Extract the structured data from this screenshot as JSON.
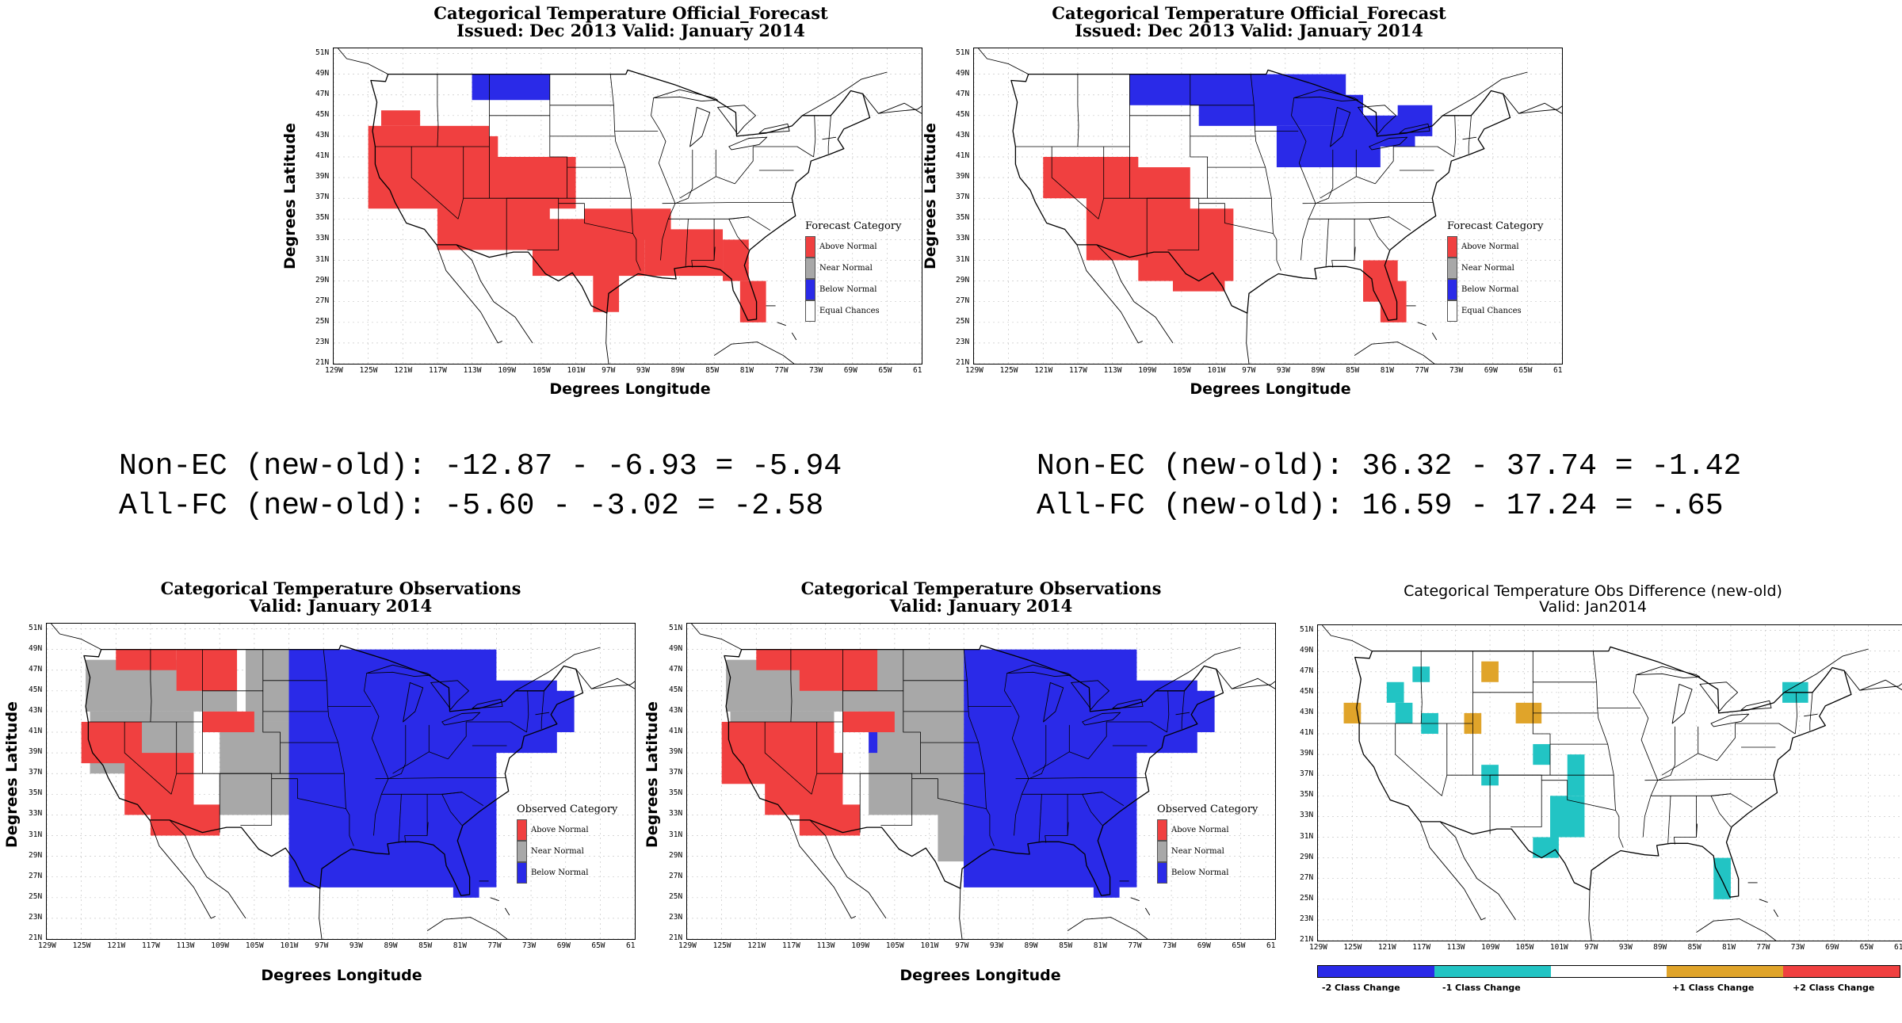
{
  "colors": {
    "above": "#f04040",
    "near": "#a8a8a8",
    "below": "#2a2ae8",
    "ec": "#ffffff",
    "minus2": "#2a2ae8",
    "minus1": "#22c4c4",
    "zero": "#ffffff",
    "plus1": "#e0a42a",
    "plus2": "#f04040"
  },
  "axes": {
    "x_label": "Degrees Longitude",
    "y_label": "Degrees Latitude",
    "x_ticks": [
      "129W",
      "125W",
      "121W",
      "117W",
      "113W",
      "109W",
      "105W",
      "101W",
      "97W",
      "93W",
      "89W",
      "85W",
      "81W",
      "77W",
      "73W",
      "69W",
      "65W",
      "61"
    ],
    "y_ticks": [
      "51N",
      "49N",
      "47N",
      "45N",
      "43N",
      "41N",
      "39N",
      "37N",
      "35N",
      "33N",
      "31N",
      "29N",
      "27N",
      "25N",
      "23N",
      "21N"
    ]
  },
  "panels": {
    "fc_old": {
      "title1": "Categorical Temperature Official_Forecast",
      "title2": "Issued: Dec 2013 Valid: January 2014",
      "legend_title": "Forecast Category",
      "legend": [
        "Above Normal",
        "Near Normal",
        "Below Normal",
        "Equal Chances"
      ]
    },
    "fc_new": {
      "title1": "Categorical Temperature Official_Forecast",
      "title2": "Issued: Dec 2013 Valid: January 2014",
      "legend_title": "Forecast Category",
      "legend": [
        "Above Normal",
        "Near Normal",
        "Below Normal",
        "Equal Chances"
      ]
    },
    "obs_old": {
      "title1": "Categorical Temperature Observations",
      "title2": "Valid: January 2014",
      "legend_title": "Observed Category",
      "legend": [
        "Above Normal",
        "Near Normal",
        "Below Normal"
      ]
    },
    "obs_new": {
      "title1": "Categorical Temperature Observations",
      "title2": "Valid: January 2014",
      "legend_title": "Observed Category",
      "legend": [
        "Above Normal",
        "Near Normal",
        "Below Normal"
      ]
    },
    "diff": {
      "title1": "Categorical Temperature Obs Difference (new-old)",
      "title2": "Valid: Jan2014",
      "colorbar": [
        "-2 Class Change",
        "-1 Class Change",
        "+1 Class Change",
        "+2 Class Change"
      ]
    }
  },
  "stats": {
    "left_line1": "Non-EC (new-old): -12.87 - -6.93 = -5.94",
    "left_line2": "All-FC (new-old): -5.60 - -3.02 = -2.58",
    "right_line1": "Non-EC (new-old): 36.32 - 37.74 = -1.42",
    "right_line2": "All-FC (new-old): 16.59 - 17.24 = -.65"
  }
}
